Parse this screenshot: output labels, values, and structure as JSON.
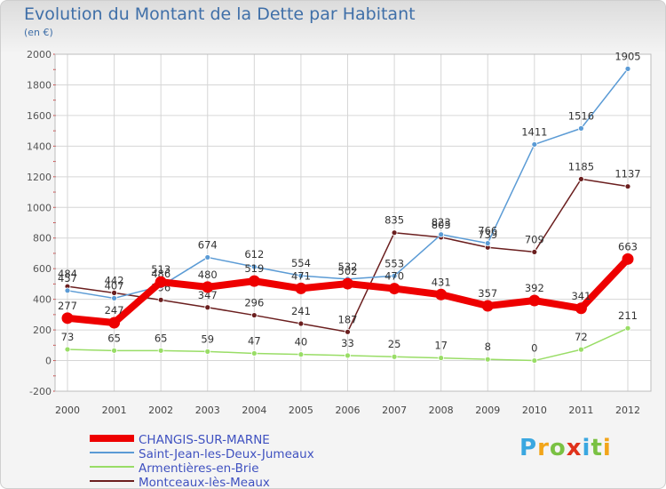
{
  "title": "Evolution du Montant de la Dette par Habitant",
  "unit": "(en €)",
  "logo": "Proxiti",
  "chart_data": {
    "type": "line",
    "title": "Evolution du Montant de la Dette par Habitant",
    "ylabel": "(en €)",
    "x": [
      "2000",
      "2001",
      "2002",
      "2003",
      "2004",
      "2005",
      "2006",
      "2007",
      "2008",
      "2009",
      "2010",
      "2011",
      "2012"
    ],
    "ylim": [
      -200,
      2000
    ],
    "yticks": [
      -200,
      0,
      200,
      400,
      600,
      800,
      1000,
      1200,
      1400,
      1600,
      1800,
      2000
    ],
    "grid": true,
    "legend": "bottom-left",
    "series": [
      {
        "name": "CHANGIS-SUR-MARNE",
        "color": "#ee0000",
        "values": [
          277,
          247,
          513,
          480,
          519,
          471,
          502,
          470,
          431,
          357,
          392,
          341,
          663
        ]
      },
      {
        "name": "Saint-Jean-les-Deux-Jumeaux",
        "color": "#5b9bd5",
        "values": [
          457,
          407,
          486,
          674,
          612,
          554,
          532,
          553,
          823,
          766,
          1411,
          1516,
          1905
        ]
      },
      {
        "name": "Armentières-en-Brie",
        "color": "#99dd66",
        "values": [
          73,
          65,
          65,
          59,
          47,
          40,
          33,
          25,
          17,
          8,
          0,
          72,
          211
        ]
      },
      {
        "name": "Montceaux-lès-Meaux",
        "color": "#6b1f1f",
        "values": [
          484,
          442,
          396,
          347,
          296,
          241,
          187,
          835,
          805,
          739,
          709,
          1185,
          1137
        ]
      }
    ]
  }
}
